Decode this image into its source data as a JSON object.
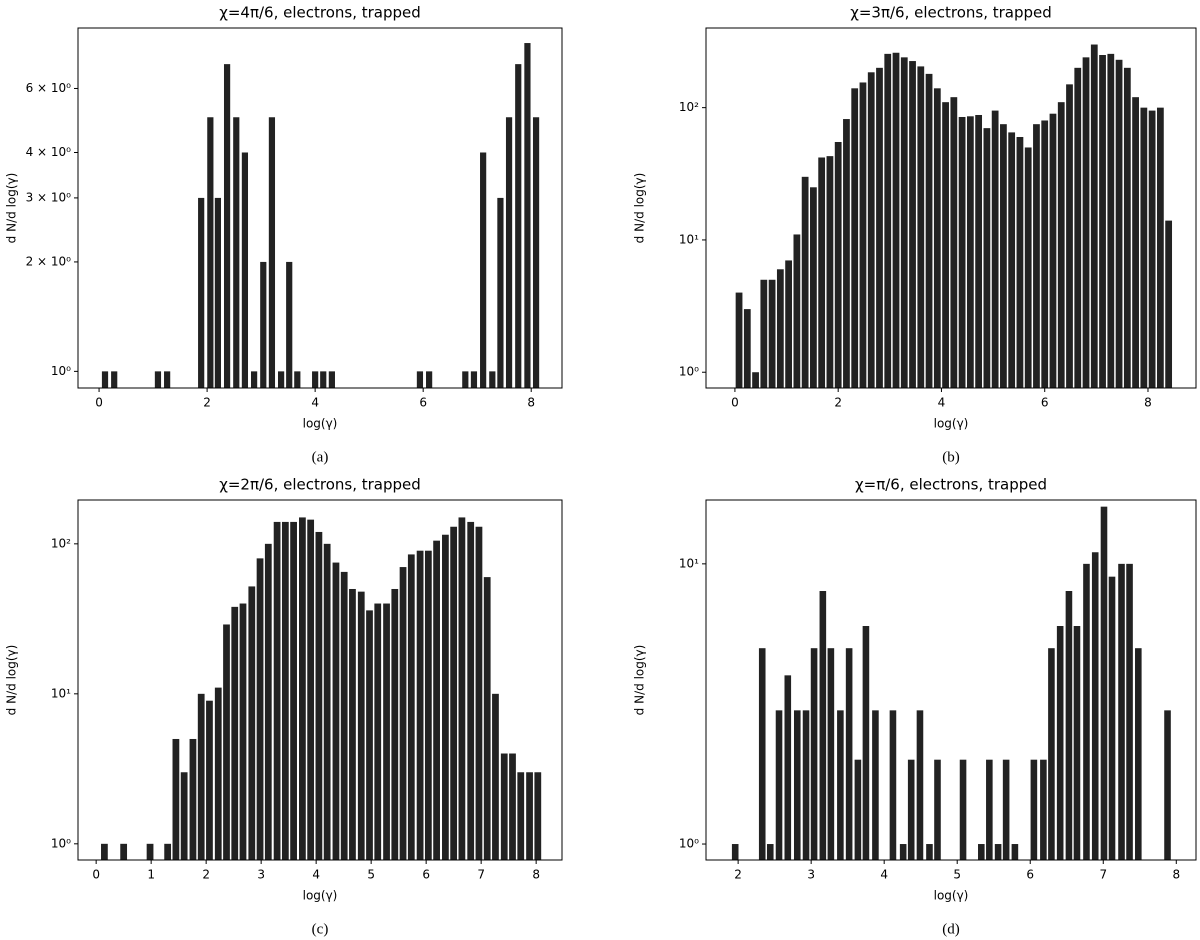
{
  "chart_data": [
    {
      "type": "bar",
      "title": "χ=4π/6, electrons, trapped",
      "xlabel": "log(γ)",
      "ylabel": "d N/d log(γ)",
      "caption": "(a)",
      "color": "#222222",
      "ylog": true,
      "x": [
        0.11,
        0.28,
        1.09,
        1.26,
        1.89,
        2.06,
        2.2,
        2.37,
        2.54,
        2.7,
        2.87,
        3.04,
        3.2,
        3.37,
        3.52,
        3.67,
        4.0,
        4.15,
        4.31,
        5.94,
        6.11,
        6.78,
        6.94,
        7.11,
        7.28,
        7.43,
        7.59,
        7.76,
        7.93,
        8.09
      ],
      "values": [
        1,
        1,
        1,
        1,
        3,
        5,
        3,
        7,
        5,
        4,
        1,
        2,
        5,
        1,
        2,
        1,
        1,
        1,
        1,
        1,
        1,
        1,
        1,
        4,
        1,
        3,
        5,
        7,
        8,
        5
      ],
      "xlim": [
        -0.39,
        8.57
      ],
      "xticks": [
        0,
        2,
        4,
        6,
        8
      ],
      "ylim": [
        0.9,
        8.8
      ],
      "yticks": [
        {
          "value": 1,
          "label": "10⁰"
        },
        {
          "value": 2,
          "label": "2 × 10⁰"
        },
        {
          "value": 3,
          "label": "3 × 10⁰"
        },
        {
          "value": 4,
          "label": "4 × 10⁰"
        },
        {
          "value": 6,
          "label": "6 × 10⁰"
        }
      ]
    },
    {
      "type": "bar",
      "title": "χ=3π/6, electrons, trapped",
      "xlabel": "log(γ)",
      "ylabel": "d N/d log(γ)",
      "caption": "(b)",
      "color": "#222222",
      "ylog": true,
      "x": [
        0.08,
        0.24,
        0.4,
        0.56,
        0.72,
        0.88,
        1.04,
        1.2,
        1.36,
        1.52,
        1.68,
        1.84,
        2.0,
        2.16,
        2.32,
        2.48,
        2.64,
        2.8,
        2.96,
        3.12,
        3.28,
        3.44,
        3.6,
        3.76,
        3.92,
        4.08,
        4.24,
        4.4,
        4.56,
        4.72,
        4.88,
        5.04,
        5.2,
        5.36,
        5.52,
        5.68,
        5.84,
        6.0,
        6.16,
        6.32,
        6.48,
        6.64,
        6.8,
        6.96,
        7.12,
        7.28,
        7.44,
        7.6,
        7.76,
        7.92,
        8.08,
        8.24,
        8.4
      ],
      "values": [
        4,
        3,
        1,
        5,
        5,
        6,
        7,
        11,
        30,
        25,
        42,
        43,
        55,
        82,
        140,
        155,
        185,
        200,
        255,
        260,
        240,
        225,
        205,
        180,
        140,
        110,
        120,
        85,
        86,
        88,
        70,
        95,
        75,
        65,
        60,
        50,
        75,
        80,
        90,
        110,
        150,
        200,
        240,
        300,
        250,
        255,
        230,
        200,
        120,
        100,
        95,
        100,
        14
      ],
      "xlim": [
        -0.56,
        8.93
      ],
      "xticks": [
        0,
        2,
        4,
        6,
        8
      ],
      "ylim": [
        0.76,
        400
      ],
      "yticks": [
        {
          "value": 1,
          "label": "10⁰"
        },
        {
          "value": 10,
          "label": "10¹"
        },
        {
          "value": 100,
          "label": "10²"
        }
      ]
    },
    {
      "type": "bar",
      "title": "χ=2π/6, electrons, trapped",
      "xlabel": "log(γ)",
      "ylabel": "d N/d log(γ)",
      "caption": "(c)",
      "color": "#222222",
      "ylog": true,
      "x": [
        0.15,
        0.5,
        0.98,
        1.3,
        1.45,
        1.6,
        1.76,
        1.91,
        2.06,
        2.22,
        2.37,
        2.52,
        2.67,
        2.83,
        2.98,
        3.13,
        3.29,
        3.44,
        3.59,
        3.75,
        3.9,
        4.05,
        4.2,
        4.36,
        4.51,
        4.66,
        4.82,
        4.97,
        5.12,
        5.28,
        5.43,
        5.58,
        5.73,
        5.89,
        6.04,
        6.19,
        6.35,
        6.5,
        6.65,
        6.81,
        6.96,
        7.11,
        7.26,
        7.42,
        7.57,
        7.72,
        7.88,
        8.03
      ],
      "values": [
        1,
        1,
        1,
        1,
        5,
        3,
        5,
        10,
        9,
        11,
        29,
        38,
        40,
        52,
        80,
        100,
        140,
        140,
        140,
        150,
        145,
        120,
        100,
        75,
        65,
        50,
        48,
        36,
        40,
        40,
        50,
        70,
        85,
        90,
        90,
        105,
        115,
        130,
        150,
        140,
        130,
        60,
        10,
        4,
        4,
        3,
        3,
        3
      ],
      "xlim": [
        -0.33,
        8.47
      ],
      "xticks": [
        0,
        1,
        2,
        3,
        4,
        5,
        6,
        7,
        8
      ],
      "ylim": [
        0.78,
        196
      ],
      "yticks": [
        {
          "value": 1,
          "label": "10⁰"
        },
        {
          "value": 10,
          "label": "10¹"
        },
        {
          "value": 100,
          "label": "10²"
        }
      ]
    },
    {
      "type": "bar",
      "title": "χ=π/6, electrons, trapped",
      "xlabel": "log(γ)",
      "ylabel": "d N/d log(γ)",
      "caption": "(d)",
      "color": "#222222",
      "ylog": true,
      "x": [
        1.96,
        2.33,
        2.44,
        2.56,
        2.68,
        2.81,
        2.93,
        3.04,
        3.16,
        3.27,
        3.4,
        3.52,
        3.64,
        3.75,
        3.88,
        4.12,
        4.26,
        4.37,
        4.49,
        4.62,
        4.73,
        5.08,
        5.33,
        5.44,
        5.56,
        5.67,
        5.79,
        6.05,
        6.18,
        6.29,
        6.41,
        6.53,
        6.64,
        6.77,
        6.89,
        7.01,
        7.12,
        7.25,
        7.36,
        7.48,
        7.88
      ],
      "values": [
        1,
        5,
        1,
        3,
        4,
        3,
        3,
        5,
        8,
        5,
        3,
        5,
        2,
        6,
        3,
        3,
        1,
        2,
        3,
        1,
        2,
        2,
        1,
        2,
        1,
        2,
        1,
        2,
        2,
        5,
        6,
        8,
        6,
        10,
        11,
        16,
        9,
        10,
        10,
        5,
        3
      ],
      "xlim": [
        1.56,
        8.27
      ],
      "xticks": [
        2,
        3,
        4,
        5,
        6,
        7,
        8
      ],
      "ylim": [
        0.877,
        16.9
      ],
      "yticks": [
        {
          "value": 1,
          "label": "10⁰"
        },
        {
          "value": 10,
          "label": "10¹"
        }
      ]
    }
  ]
}
